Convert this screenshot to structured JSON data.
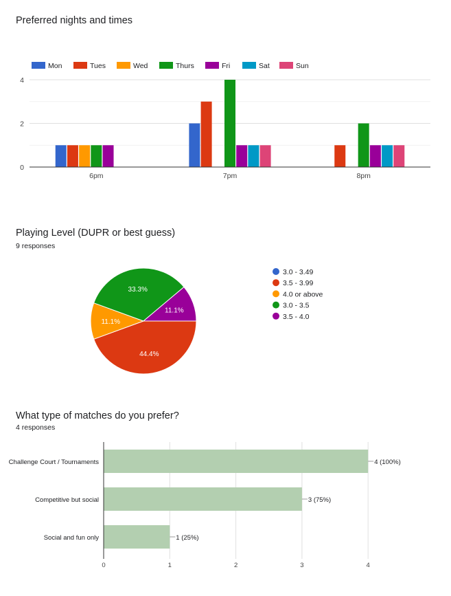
{
  "chart_data": [
    {
      "type": "bar",
      "title": "Preferred nights and times",
      "categories": [
        "6pm",
        "7pm",
        "8pm"
      ],
      "series": [
        {
          "name": "Mon",
          "color": "#3366cc",
          "values": [
            1,
            2,
            0
          ]
        },
        {
          "name": "Tues",
          "color": "#dc3912",
          "values": [
            1,
            3,
            1
          ]
        },
        {
          "name": "Wed",
          "color": "#ff9900",
          "values": [
            1,
            0,
            0
          ]
        },
        {
          "name": "Thurs",
          "color": "#109618",
          "values": [
            1,
            4,
            2
          ]
        },
        {
          "name": "Fri",
          "color": "#990099",
          "values": [
            1,
            1,
            1
          ]
        },
        {
          "name": "Sat",
          "color": "#0099c6",
          "values": [
            0,
            1,
            1
          ]
        },
        {
          "name": "Sun",
          "color": "#dd4477",
          "values": [
            0,
            1,
            1
          ]
        }
      ],
      "ylim": [
        0,
        4
      ],
      "yticks": [
        "0",
        "2",
        "4"
      ],
      "legend": "top",
      "grid": true
    },
    {
      "type": "pie",
      "title": "Playing Level (DUPR or best guess)",
      "subtitle": "9 responses",
      "legend": "right",
      "labels": [
        "3.0 - 3.49",
        "3.5 - 3.99",
        "4.0 or above",
        "3.0 - 3.5",
        "3.5 - 4.0"
      ],
      "colors": [
        "#3366cc",
        "#dc3912",
        "#ff9900",
        "#109618",
        "#990099"
      ],
      "values": [
        0,
        44.4,
        11.1,
        33.3,
        11.1
      ],
      "value_labels": [
        "",
        "44.4%",
        "11.1%",
        "33.3%",
        "11.1%"
      ]
    },
    {
      "type": "bar",
      "orientation": "horizontal",
      "title": "What type of matches do you prefer?",
      "subtitle": "4 responses",
      "categories": [
        "Challenge Court / Tournaments",
        "Competitive but social",
        "Social and fun only"
      ],
      "values": [
        4,
        3,
        1
      ],
      "value_labels": [
        "4 (100%)",
        "3 (75%)",
        "1 (25%)"
      ],
      "color": "#b3cfb0",
      "xlim": [
        0,
        4
      ],
      "xticks": [
        "0",
        "1",
        "2",
        "3",
        "4"
      ],
      "grid": true
    }
  ]
}
